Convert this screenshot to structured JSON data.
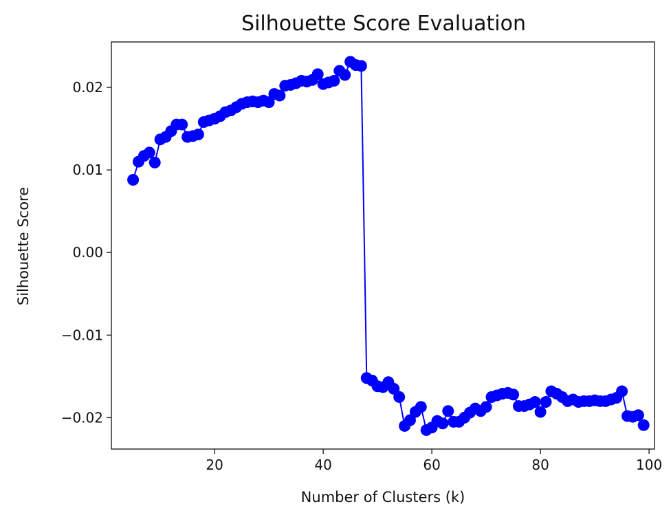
{
  "chart_data": {
    "type": "line",
    "title": "Silhouette Score Evaluation",
    "xlabel": "Number of Clusters (k)",
    "ylabel": "Silhouette Score",
    "xlim": [
      1,
      101
    ],
    "ylim": [
      -0.0238,
      0.0255
    ],
    "xticks": [
      20,
      40,
      60,
      80,
      100
    ],
    "xtick_labels": [
      "20",
      "40",
      "60",
      "80",
      "100"
    ],
    "yticks": [
      -0.02,
      -0.01,
      0.0,
      0.01,
      0.02
    ],
    "ytick_labels": [
      "−0.02",
      "−0.01",
      "0.00",
      "0.01",
      "0.02"
    ],
    "grid": false,
    "marker": "circle",
    "color": "#0000ff",
    "series": [
      {
        "x": [
          5,
          6,
          7,
          8,
          9,
          10,
          11,
          12,
          13,
          14,
          15,
          16,
          17,
          18,
          19,
          20,
          21,
          22,
          23,
          24,
          25,
          26,
          27,
          28,
          29,
          30,
          31,
          32,
          33,
          34,
          35,
          36,
          37,
          38,
          39,
          40,
          41,
          42,
          43,
          44,
          45,
          46,
          47,
          48,
          49,
          50,
          51,
          52,
          53,
          54,
          55,
          56,
          57,
          58,
          59,
          60,
          61,
          62,
          63,
          64,
          65,
          66,
          67,
          68,
          69,
          70,
          71,
          72,
          73,
          74,
          75,
          76,
          77,
          78,
          79,
          80,
          81,
          82,
          83,
          84,
          85,
          86,
          87,
          88,
          89,
          90,
          91,
          92,
          93,
          94,
          95,
          96,
          97,
          98,
          99
        ],
        "y": [
          0.0088,
          0.011,
          0.0117,
          0.0121,
          0.0109,
          0.0137,
          0.014,
          0.0147,
          0.0155,
          0.0155,
          0.014,
          0.0141,
          0.0143,
          0.0158,
          0.016,
          0.0162,
          0.0165,
          0.017,
          0.0172,
          0.0176,
          0.018,
          0.0182,
          0.0183,
          0.0182,
          0.0184,
          0.0182,
          0.0192,
          0.019,
          0.0202,
          0.0203,
          0.0205,
          0.0208,
          0.0207,
          0.0209,
          0.0216,
          0.0204,
          0.0206,
          0.0208,
          0.022,
          0.0215,
          0.0231,
          0.0227,
          0.0226,
          -0.0152,
          -0.0155,
          -0.0162,
          -0.0163,
          -0.0157,
          -0.0165,
          -0.0175,
          -0.021,
          -0.0203,
          -0.0193,
          -0.0187,
          -0.0215,
          -0.0212,
          -0.0204,
          -0.0207,
          -0.0192,
          -0.0205,
          -0.0205,
          -0.02,
          -0.0194,
          -0.0189,
          -0.0192,
          -0.0187,
          -0.0175,
          -0.0173,
          -0.0171,
          -0.017,
          -0.0172,
          -0.0186,
          -0.0186,
          -0.0184,
          -0.0181,
          -0.0193,
          -0.0181,
          -0.0168,
          -0.0171,
          -0.0175,
          -0.018,
          -0.0178,
          -0.0181,
          -0.018,
          -0.018,
          -0.0179,
          -0.018,
          -0.018,
          -0.0178,
          -0.0176,
          -0.0168,
          -0.0198,
          -0.0199,
          -0.0197,
          -0.0209
        ]
      }
    ]
  }
}
